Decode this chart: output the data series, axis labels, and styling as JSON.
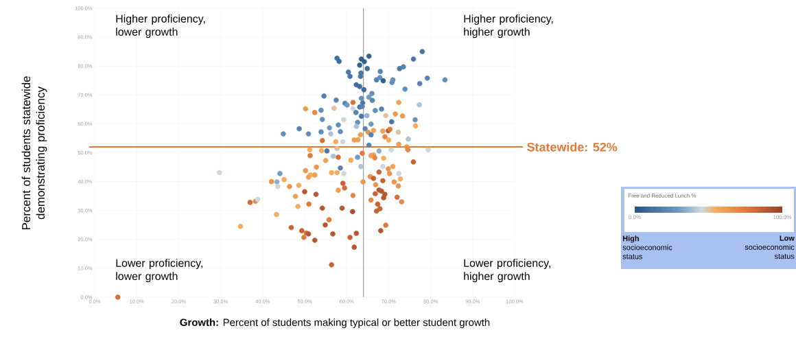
{
  "chart_data": {
    "type": "scatter",
    "xlabel": "**Growth:** Percent of students making typical or better student growth",
    "ylabel": "Percent of students statewide demonstrating proficiency",
    "clabel": "Free and Reduced Lunch %",
    "xlim": [
      0,
      100
    ],
    "ylim": [
      0,
      100
    ],
    "xticks": [
      {
        "value": 0,
        "label": "0.0%"
      },
      {
        "value": 10,
        "label": "10.0%"
      },
      {
        "value": 20,
        "label": "20.0%"
      },
      {
        "value": 30,
        "label": "30.0%"
      },
      {
        "value": 40,
        "label": "40.0%"
      },
      {
        "value": 50,
        "label": "50.0%"
      },
      {
        "value": 60,
        "label": "60.0%"
      },
      {
        "value": 70,
        "label": "70.0%"
      },
      {
        "value": 80,
        "label": "80.0%"
      },
      {
        "value": 90,
        "label": "90.0%"
      },
      {
        "value": 100,
        "label": "100.0%"
      }
    ],
    "yticks": [
      {
        "value": 0,
        "label": "0.0%"
      },
      {
        "value": 10,
        "label": "10.0%"
      },
      {
        "value": 20,
        "label": "20.0%"
      },
      {
        "value": 30,
        "label": "30.0%"
      },
      {
        "value": 40,
        "label": "40.0%"
      },
      {
        "value": 50,
        "label": "50.0%"
      },
      {
        "value": 60,
        "label": "60.0%"
      },
      {
        "value": 70,
        "label": "70.0%"
      },
      {
        "value": 80,
        "label": "80.0%"
      },
      {
        "value": 90,
        "label": "90.0%"
      },
      {
        "value": 100,
        "label": "100.0%"
      }
    ],
    "clim": [
      0,
      100
    ],
    "cticks": [
      {
        "value": 0,
        "label": "0.0%"
      },
      {
        "value": 100,
        "label": "100.0%"
      }
    ],
    "grid": true,
    "marker": "circle",
    "ref_lines": [
      {
        "axis": "y",
        "value": 52,
        "label": "Statewide: 52%",
        "color": "#e07b39"
      },
      {
        "axis": "x",
        "value": 64,
        "color": "#8c8c8c"
      }
    ],
    "annotations": [
      "Higher proficiency, lower growth",
      "Higher proficiency, higher growth",
      "Lower proficiency, lower growth",
      "Lower proficiency, higher growth",
      "**High** socioeconomic status",
      "**Low** socioeconomic status"
    ],
    "series": [
      {
        "x": [
          57.7,
          58.2,
          63.5,
          65.3,
          64.2,
          63.1,
          78.0,
          75.9,
          64.9,
          60.4,
          60.8,
          63.4,
          63.3,
          68.0,
          72.6,
          73.5,
          67.1,
          67.9,
          68.7,
          71.0,
          70.8,
          79.2,
          77.4,
          83.4,
          62.3,
          63.1,
          64.1,
          73.9,
          66.0,
          54.6,
          65.3,
          63.5,
          57.5,
          66.1,
          59.6,
          60.1,
          61.5,
          63.8,
          63.1,
          63.7,
          72.4,
          77.3,
          50.2,
          52.4,
          53.9,
          57.0,
          61.5,
          62.2,
          66.8,
          68.3,
          63.5,
          64.8,
          69.3,
          71.6,
          73.3,
          54.2,
          59.3,
          65.8,
          62.6,
          70.7,
          76.3,
          48.7,
          55.9,
          58.0,
          62.3,
          76.4,
          44.9,
          50.9,
          53.9,
          56.2,
          58.5,
          64.4,
          66.4,
          68.6,
          69.9,
          70.3,
          72.3,
          63.3,
          65.1,
          65.8,
          69.1,
          70.0,
          74.7,
          54.2,
          57.4,
          59.1,
          61.8,
          62.7,
          65.3,
          72.4,
          74.3,
          51.2,
          54.0,
          55.3,
          57.7,
          63.7,
          66.4,
          66.7,
          67.7,
          70.6,
          74.6,
          79.4,
          51.3,
          56.8,
          58.0,
          55.0,
          61.0,
          62.6,
          65.8,
          68.8,
          75.9,
          29.7,
          52.8,
          58.5,
          63.4,
          68.6,
          71.0,
          44.1,
          50.2,
          51.4,
          50.9,
          52.4,
          56.4,
          57.7,
          59.3,
          69.9,
          70.2,
          72.4,
          42.1,
          43.4,
          43.6,
          45.1,
          46.4,
          48.6,
          50.0,
          52.7,
          59.1,
          59.5,
          58.0,
          61.5,
          63.9,
          65.6,
          66.4,
          67.7,
          68.6,
          71.3,
          72.8,
          72.3,
          66.9,
          67.7,
          68.3,
          69.1,
          68.8,
          66.8,
          65.8,
          72.0,
          73.1,
          67.4,
          67.1,
          67.9,
          37.0,
          38.3,
          38.8,
          47.8,
          51.0,
          48.4,
          43.3,
          54.2,
          58.9,
          61.4,
          55.8,
          54.9,
          34.7,
          46.8,
          49.3,
          50.4,
          50.9,
          49.8,
          52.4,
          56.7,
          60.8,
          62.3,
          61.8,
          69.3,
          68.1,
          56.4,
          5.5
        ],
        "values": [
          82.7,
          81.6,
          82.4,
          83.4,
          81.5,
          80.3,
          85.0,
          82.4,
          79.1,
          77.9,
          76.4,
          77.6,
          76.4,
          78.1,
          79.1,
          79.7,
          75.2,
          76.0,
          74.9,
          75.2,
          74.3,
          75.8,
          73.9,
          75.2,
          73.5,
          72.9,
          71.8,
          72.0,
          70.5,
          69.6,
          69.2,
          68.8,
          68.2,
          68.1,
          67.1,
          66.5,
          67.4,
          67.2,
          65.8,
          66.0,
          67.4,
          66.6,
          65.2,
          63.9,
          64.7,
          65.4,
          65.2,
          63.9,
          64.6,
          65.1,
          62.6,
          62.8,
          62.8,
          63.4,
          62.7,
          61.5,
          61.4,
          59.9,
          60.5,
          60.7,
          61.4,
          58.3,
          58.6,
          59.6,
          59.1,
          59.3,
          56.5,
          56.5,
          57.2,
          56.5,
          57.3,
          58.3,
          57.7,
          57.5,
          57.6,
          58.1,
          57.1,
          56.2,
          57.1,
          56.2,
          55.5,
          54.4,
          54.7,
          54.2,
          53.8,
          53.8,
          54.4,
          54.5,
          52.6,
          52.9,
          52.0,
          51.0,
          50.7,
          50.6,
          51.4,
          49.8,
          49.2,
          48.2,
          50.6,
          51.0,
          51.0,
          51.0,
          49.0,
          48.8,
          48.4,
          47.3,
          47.4,
          48.4,
          49.0,
          48.1,
          46.8,
          43.1,
          45.0,
          44.7,
          45.2,
          45.2,
          45.2,
          42.8,
          43.8,
          42.3,
          41.5,
          42.3,
          43.1,
          43.1,
          42.8,
          44.4,
          42.8,
          42.8,
          40.0,
          39.9,
          38.3,
          40.7,
          38.3,
          38.7,
          36.5,
          35.6,
          39.4,
          37.8,
          37.0,
          35.2,
          39.9,
          41.7,
          41.1,
          43.3,
          40.3,
          39.9,
          40.9,
          38.5,
          38.9,
          37.1,
          36.7,
          35.6,
          34.4,
          35.8,
          33.6,
          34.6,
          33.0,
          32.2,
          29.8,
          30.6,
          32.8,
          33.2,
          33.8,
          34.9,
          32.2,
          31.4,
          28.6,
          30.8,
          30.8,
          29.6,
          26.8,
          25.0,
          24.5,
          24.1,
          23.0,
          22.2,
          21.9,
          20.7,
          19.7,
          21.9,
          20.7,
          22.1,
          17.3,
          24.9,
          23.0,
          11.2,
          0.0
        ],
        "cvalues": [
          10,
          10,
          5,
          5,
          5,
          5,
          15,
          15,
          10,
          15,
          15,
          15,
          15,
          20,
          15,
          20,
          20,
          25,
          5,
          25,
          25,
          20,
          20,
          25,
          10,
          10,
          10,
          25,
          25,
          20,
          30,
          25,
          20,
          20,
          20,
          30,
          80,
          15,
          15,
          20,
          60,
          40,
          62,
          70,
          25,
          50,
          45,
          20,
          25,
          20,
          15,
          35,
          50,
          62,
          62,
          25,
          45,
          30,
          25,
          15,
          25,
          20,
          30,
          25,
          40,
          55,
          25,
          25,
          25,
          40,
          25,
          20,
          60,
          60,
          90,
          75,
          50,
          60,
          65,
          20,
          70,
          55,
          40,
          80,
          55,
          45,
          60,
          60,
          20,
          60,
          65,
          55,
          55,
          15,
          50,
          75,
          60,
          70,
          35,
          45,
          70,
          45,
          75,
          40,
          80,
          60,
          55,
          30,
          60,
          55,
          85,
          45,
          65,
          20,
          40,
          45,
          60,
          30,
          65,
          55,
          60,
          60,
          55,
          55,
          45,
          65,
          65,
          45,
          65,
          35,
          45,
          55,
          65,
          55,
          90,
          90,
          85,
          80,
          60,
          70,
          65,
          65,
          85,
          85,
          85,
          65,
          55,
          65,
          65,
          90,
          90,
          90,
          90,
          85,
          70,
          80,
          70,
          85,
          85,
          85,
          80,
          70,
          45,
          60,
          75,
          55,
          55,
          90,
          90,
          95,
          75,
          90,
          55,
          85,
          85,
          80,
          90,
          75,
          90,
          90,
          85,
          90,
          90,
          75,
          90,
          85,
          80
        ]
      }
    ]
  }
}
